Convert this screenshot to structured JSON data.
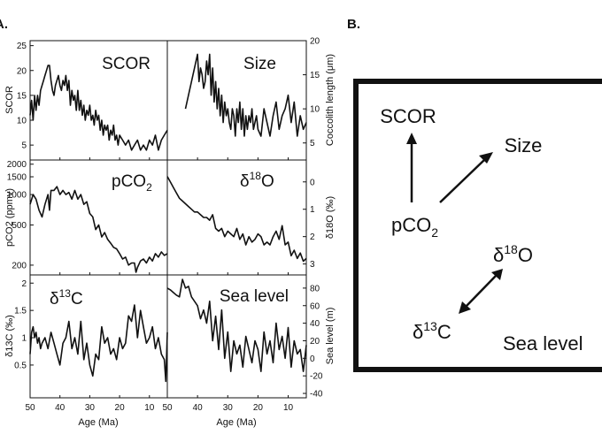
{
  "figure": {
    "panel_a_label": "A.",
    "panel_b_label": "B."
  },
  "chart_data": [
    {
      "id": "scor",
      "type": "line",
      "title": "SCOR",
      "xlabel": "",
      "ylabel": "SCOR",
      "xlim": [
        50,
        4
      ],
      "ylim": [
        2,
        26
      ],
      "yticks": [
        5,
        10,
        15,
        20,
        25
      ],
      "xticks": [],
      "x": [
        50,
        49.5,
        49,
        48.5,
        48,
        47.5,
        47,
        46.5,
        46,
        45.5,
        45,
        44.5,
        44,
        43.5,
        43,
        42.5,
        42,
        41.5,
        41,
        40.5,
        40,
        39.5,
        39,
        38.5,
        38,
        37.5,
        37,
        36.5,
        36,
        35.5,
        35,
        34.5,
        34,
        33.5,
        33,
        32.5,
        32,
        31.5,
        31,
        30.5,
        30,
        29.5,
        29,
        28.5,
        28,
        27.5,
        27,
        26.5,
        26,
        25.5,
        25,
        24.5,
        24,
        23.5,
        23,
        22.5,
        22,
        21.5,
        21,
        20.5,
        20,
        19,
        18,
        17,
        16,
        15,
        14,
        13,
        12,
        11,
        10,
        9,
        8,
        7,
        6,
        5,
        4
      ],
      "y": [
        11,
        14,
        10,
        15,
        12,
        15,
        13,
        16,
        17,
        18,
        19,
        20,
        21,
        21,
        18,
        16,
        15,
        17,
        18,
        19,
        17,
        16,
        18,
        17,
        19,
        16,
        18,
        13,
        16,
        14,
        15,
        12,
        16,
        12,
        14,
        11,
        13,
        10,
        12,
        11,
        13,
        10,
        11,
        9,
        12,
        10,
        11,
        8,
        10,
        7,
        9,
        8,
        9,
        6,
        8,
        7,
        9,
        6,
        7,
        5,
        7,
        6,
        5,
        6,
        4,
        5,
        6,
        4,
        5,
        4,
        6,
        5,
        7,
        4,
        6,
        7,
        8
      ]
    },
    {
      "id": "size",
      "type": "line",
      "title": "Size",
      "xlabel": "",
      "ylabel": "Coccolith length (μm)",
      "y_axis_side": "right",
      "xlim": [
        50,
        4
      ],
      "ylim": [
        2.5,
        20
      ],
      "yticks": [
        5,
        10,
        15,
        20
      ],
      "xticks": [],
      "x": [
        44,
        43,
        42,
        41,
        40,
        39.5,
        39,
        38.5,
        38,
        37.5,
        37,
        36.5,
        36,
        35.5,
        35,
        34.5,
        34,
        33.5,
        33,
        32.5,
        32,
        31.5,
        31,
        30.5,
        30,
        29.5,
        29,
        28.5,
        28,
        27.5,
        27,
        26.5,
        26,
        25.5,
        25,
        24.5,
        24,
        23.5,
        23,
        22.5,
        22,
        21.5,
        21,
        20.5,
        20,
        19,
        18,
        17,
        16,
        15,
        14,
        13,
        12,
        11,
        10,
        9,
        8,
        7,
        6,
        5,
        4
      ],
      "y": [
        10,
        12,
        14,
        16,
        18,
        14,
        16,
        15,
        13,
        14,
        17,
        15,
        18,
        12,
        16,
        11,
        14,
        10,
        13,
        9,
        12,
        8,
        11,
        9,
        10,
        8,
        7,
        10,
        9,
        6,
        10,
        8,
        11,
        7,
        10,
        6,
        9,
        7,
        9,
        8,
        10,
        7,
        8,
        9,
        7,
        6,
        10,
        8,
        6,
        9,
        11,
        7,
        9,
        10,
        12,
        8,
        11,
        6,
        9,
        7,
        8
      ]
    },
    {
      "id": "pco2",
      "type": "line",
      "title": "pCO2",
      "title_main": "pCO",
      "title_sub": "2",
      "xlabel": "",
      "ylabel": "pCO2 (ppmv)",
      "y_scale": "log",
      "xlim": [
        50,
        4
      ],
      "ylim": [
        160,
        2200
      ],
      "yticks": [
        200,
        500,
        1000,
        1500,
        2000
      ],
      "xticks": [],
      "x": [
        50,
        49,
        48,
        47,
        46,
        45,
        44,
        43.5,
        43,
        42,
        41,
        40,
        39,
        38,
        37,
        36,
        35,
        34,
        33,
        32,
        31,
        30,
        29,
        28,
        27,
        26,
        25,
        24,
        23,
        22,
        21,
        20,
        19,
        18,
        17,
        16,
        15,
        14.5,
        14,
        13,
        12,
        11,
        10,
        9,
        8,
        7,
        6,
        5,
        4
      ],
      "y": [
        800,
        1000,
        900,
        700,
        600,
        800,
        1000,
        700,
        1100,
        1100,
        1200,
        1000,
        1100,
        1000,
        1050,
        900,
        1100,
        900,
        1000,
        800,
        850,
        650,
        600,
        450,
        500,
        380,
        420,
        360,
        330,
        300,
        290,
        260,
        230,
        240,
        200,
        210,
        210,
        170,
        190,
        220,
        230,
        210,
        240,
        220,
        260,
        240,
        270,
        250,
        260
      ]
    },
    {
      "id": "d18o",
      "type": "line",
      "title": "δ18O",
      "title_main": "δ",
      "title_sup": "18",
      "title_tail": "O",
      "xlabel": "",
      "ylabel": "δ18O (‰)",
      "y_axis_side": "right",
      "y_inverted": true,
      "xlim": [
        50,
        4
      ],
      "ylim": [
        -0.8,
        3.4
      ],
      "yticks": [
        0,
        1,
        2,
        3
      ],
      "xticks": [],
      "x": [
        50,
        49,
        48,
        47,
        46,
        45,
        44,
        43,
        42,
        41,
        40,
        39,
        38,
        37,
        36,
        35,
        34,
        33,
        32,
        31,
        30,
        29,
        28,
        27,
        26,
        25,
        24,
        23,
        22,
        21,
        20,
        19,
        18,
        17,
        16,
        15,
        14,
        13,
        12,
        11,
        10,
        9,
        8,
        7,
        6,
        5,
        4
      ],
      "y": [
        -0.2,
        0,
        0.2,
        0.4,
        0.6,
        0.7,
        0.8,
        0.9,
        1.0,
        1.1,
        1.1,
        1.2,
        1.3,
        1.3,
        1.4,
        1.2,
        1.7,
        1.8,
        1.7,
        2.0,
        1.8,
        1.9,
        2.0,
        1.7,
        2.1,
        1.9,
        2.3,
        2.0,
        2.2,
        2.1,
        1.9,
        2.0,
        2.3,
        2.2,
        2.3,
        2.0,
        1.8,
        2.1,
        1.6,
        2.3,
        2.2,
        2.7,
        2.5,
        2.8,
        2.6,
        2.9,
        2.8
      ]
    },
    {
      "id": "d13c",
      "type": "line",
      "title": "δ13C",
      "title_main": "δ",
      "title_sup": "13",
      "title_tail": "C",
      "xlabel": "Age (Ma)",
      "ylabel": "δ13C (‰)",
      "xlim": [
        50,
        4
      ],
      "ylim": [
        -0.1,
        2.15
      ],
      "yticks": [
        0.5,
        1,
        1.5,
        2
      ],
      "xticks": [
        50,
        40,
        30,
        20,
        10
      ],
      "x": [
        50,
        49.5,
        49,
        48.5,
        48,
        47.5,
        47,
        46.5,
        46,
        45,
        44,
        43,
        42,
        41,
        40,
        39,
        38,
        37,
        36,
        35,
        34,
        33,
        32,
        31,
        30,
        29,
        28,
        27,
        26,
        25,
        24,
        23,
        22,
        21,
        20,
        19,
        18,
        17,
        16,
        15,
        14,
        13,
        12,
        11,
        10,
        9,
        8,
        7,
        6,
        5,
        4.5,
        4
      ],
      "y": [
        0.7,
        1.1,
        1.2,
        1.0,
        1.1,
        0.9,
        1.0,
        0.8,
        0.9,
        1.0,
        0.8,
        1.1,
        0.9,
        0.7,
        0.5,
        0.9,
        1.0,
        1.3,
        0.8,
        1.0,
        0.7,
        1.3,
        0.6,
        0.9,
        0.5,
        0.3,
        0.7,
        0.6,
        1.2,
        0.9,
        1.0,
        0.7,
        0.8,
        0.6,
        1.0,
        0.8,
        0.9,
        1.4,
        1.3,
        1.6,
        1.0,
        1.5,
        1.2,
        0.9,
        1.0,
        1.2,
        0.8,
        1.0,
        0.7,
        0.6,
        0.2,
        1.1
      ]
    },
    {
      "id": "sealevel",
      "type": "line",
      "title": "Sea level",
      "xlabel": "Age (Ma)",
      "ylabel": "Sea level (m)",
      "y_axis_side": "right",
      "xlim": [
        50,
        4
      ],
      "ylim": [
        -45,
        95
      ],
      "yticks": [
        -40,
        -20,
        0,
        20,
        40,
        60,
        80
      ],
      "xticks": [
        50,
        40,
        30,
        20,
        10
      ],
      "x": [
        50,
        49,
        48,
        47,
        46,
        45,
        44,
        43,
        42,
        41,
        40,
        39,
        38,
        37,
        36,
        35,
        34,
        33,
        32,
        31,
        30,
        29,
        28,
        27,
        26,
        25,
        24,
        23,
        22,
        21,
        20,
        19,
        18,
        17,
        16,
        15,
        14,
        13,
        12,
        11,
        10,
        9,
        8,
        7,
        6,
        5,
        4
      ],
      "y": [
        80,
        78,
        75,
        72,
        70,
        90,
        80,
        82,
        70,
        65,
        60,
        45,
        55,
        40,
        65,
        20,
        48,
        10,
        55,
        0,
        30,
        -15,
        20,
        5,
        15,
        -10,
        25,
        10,
        -5,
        20,
        10,
        -15,
        30,
        5,
        20,
        -5,
        40,
        10,
        25,
        0,
        35,
        -10,
        20,
        5,
        10,
        -15,
        15
      ]
    }
  ],
  "diagram": {
    "nodes": {
      "scor": "SCOR",
      "size": "Size",
      "pco2_main": "pCO",
      "pco2_sub": "2",
      "d18o_main": "δ",
      "d18o_sup": "18",
      "d18o_tail": "O",
      "d13c_main": "δ",
      "d13c_sup": "13",
      "d13c_tail": "C",
      "sealevel": "Sea level"
    },
    "arrows": [
      {
        "from": "pCO2",
        "to": "SCOR",
        "style": "single"
      },
      {
        "from": "pCO2",
        "to": "Size",
        "style": "single"
      },
      {
        "from": "δ13C",
        "to": "δ18O",
        "style": "double"
      }
    ]
  }
}
